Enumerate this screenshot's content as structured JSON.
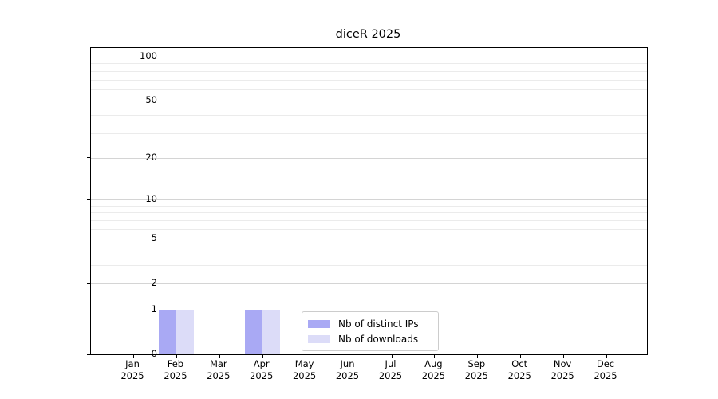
{
  "chart_data": {
    "type": "bar",
    "title": "diceR 2025",
    "year": "2025",
    "categories": [
      "Jan",
      "Feb",
      "Mar",
      "Apr",
      "May",
      "Jun",
      "Jul",
      "Aug",
      "Sep",
      "Oct",
      "Nov",
      "Dec"
    ],
    "series": [
      {
        "name": "Nb of distinct IPs",
        "color": "#a9a9f4",
        "values": [
          0,
          1,
          0,
          1,
          0,
          0,
          0,
          0,
          0,
          0,
          0,
          0
        ]
      },
      {
        "name": "Nb of downloads",
        "color": "#dcdcf8",
        "values": [
          0,
          1,
          0,
          1,
          0,
          0,
          0,
          0,
          0,
          0,
          0,
          0
        ]
      }
    ],
    "ylabel": "",
    "xlabel": "",
    "scale": "log1p",
    "ylim": [
      0,
      115
    ],
    "y_major_ticks": [
      0,
      1,
      2,
      5,
      10,
      20,
      50,
      100
    ],
    "y_minor_gridlines": [
      3,
      4,
      6,
      7,
      8,
      9,
      30,
      40,
      60,
      70,
      80,
      90
    ],
    "grid": true,
    "legend_position": "lower center",
    "colors": {
      "major_grid": "#d4d4d4",
      "minor_grid": "#ebebeb",
      "axis": "#000000",
      "background": "#ffffff",
      "legend_border": "#cccccc"
    }
  }
}
